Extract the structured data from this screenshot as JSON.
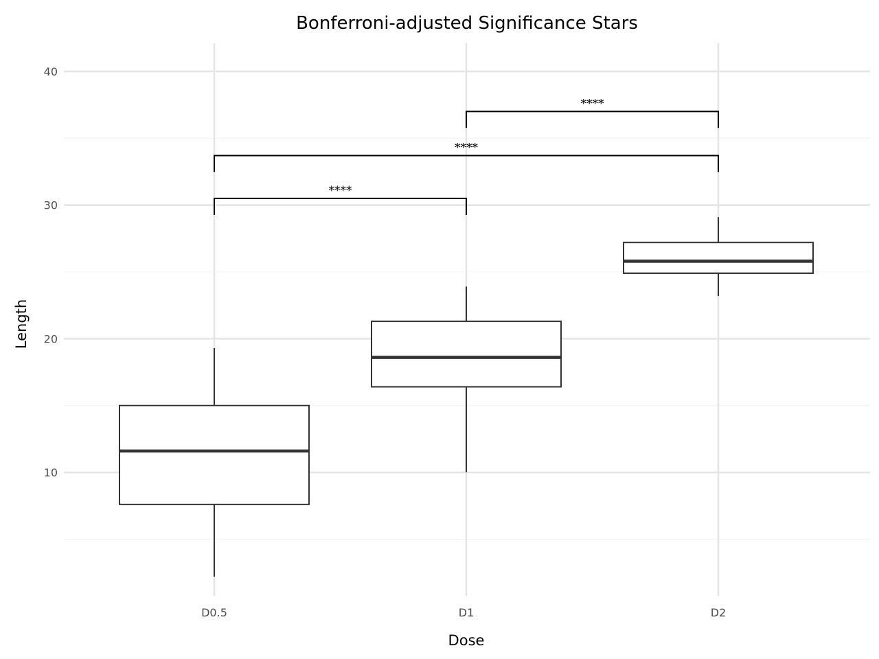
{
  "chart_data": {
    "type": "boxplot",
    "title": "Bonferroni-adjusted Significance Stars",
    "xlabel": "Dose",
    "ylabel": "Length",
    "categories": [
      "D0.5",
      "D1",
      "D2"
    ],
    "ylim": [
      0.5,
      42
    ],
    "yticks": [
      10,
      20,
      30,
      40
    ],
    "grid": true,
    "legend": null,
    "boxes": [
      {
        "category": "D0.5",
        "whisker_low": 2.2,
        "q1": 7.6,
        "median": 11.6,
        "q3": 15.0,
        "whisker_high": 19.3
      },
      {
        "category": "D1",
        "whisker_low": 10.0,
        "q1": 16.4,
        "median": 18.6,
        "q3": 21.3,
        "whisker_high": 23.9
      },
      {
        "category": "D2",
        "whisker_low": 23.2,
        "q1": 24.9,
        "median": 25.8,
        "q3": 27.2,
        "whisker_high": 29.1
      }
    ],
    "annotations": [
      {
        "from": "D0.5",
        "to": "D1",
        "y": 30.5,
        "label": "****"
      },
      {
        "from": "D0.5",
        "to": "D2",
        "y": 33.7,
        "label": "****"
      },
      {
        "from": "D1",
        "to": "D2",
        "y": 37.0,
        "label": "****"
      }
    ]
  }
}
